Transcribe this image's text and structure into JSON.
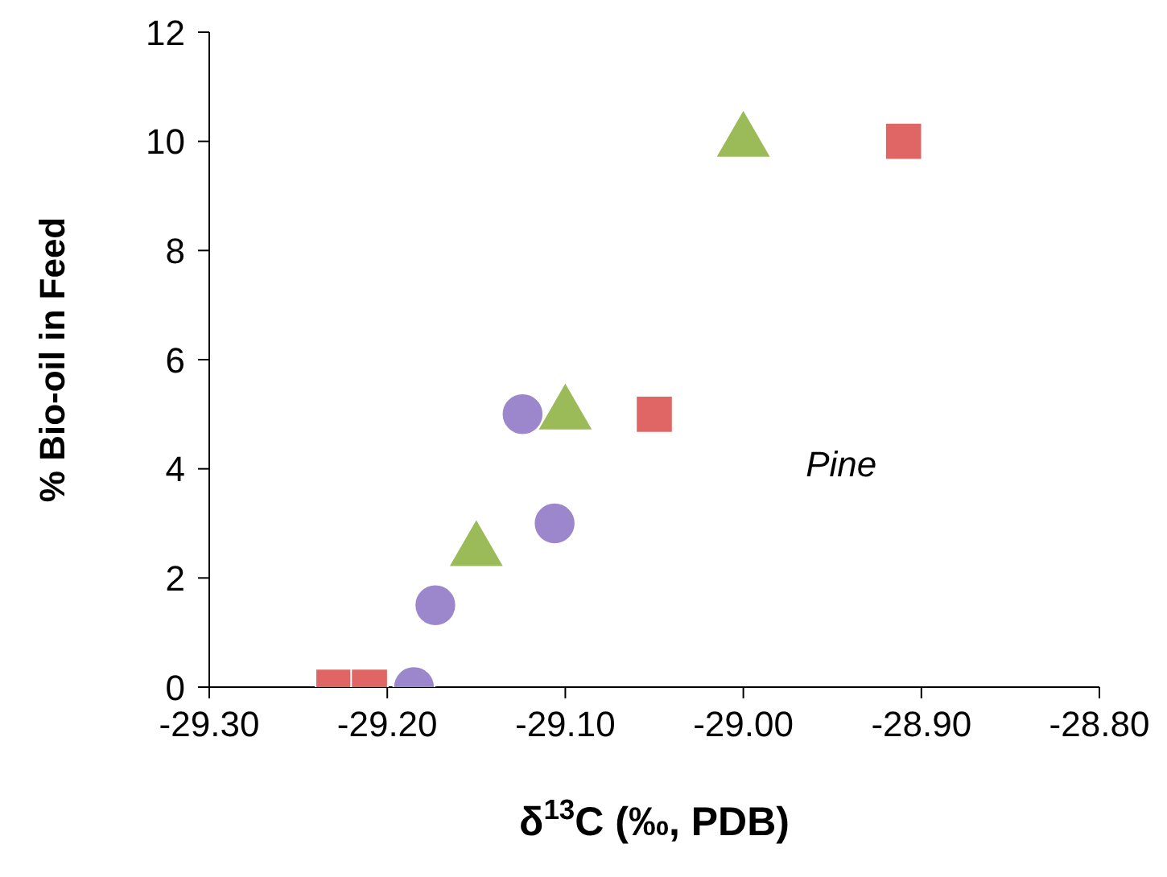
{
  "chart_data": {
    "type": "scatter",
    "xlabel": "δ$^{13}$C (‰, PDB)",
    "ylabel": "% Bio-oil in Feed",
    "annotations": [
      "Pine"
    ],
    "series": [
      {
        "color": "#e06666",
        "marker": "square",
        "x": [
          -29.23,
          -29.21,
          -29.05,
          -28.91
        ],
        "values": [
          0,
          0,
          5,
          10
        ]
      },
      {
        "color": "#9bbb59",
        "marker": "triangle",
        "x": [
          -29.15,
          -29.1,
          -29.0
        ],
        "values": [
          2.5,
          5,
          10
        ]
      },
      {
        "color": "#9d87cc",
        "marker": "circle",
        "x": [
          -29.185,
          -29.173,
          -29.124,
          -29.106
        ],
        "values": [
          0,
          1.5,
          5,
          3
        ]
      }
    ],
    "xlim": [
      -29.3,
      -28.8
    ],
    "xticks": [
      {
        "value": -29.3,
        "label": "-29.30"
      },
      {
        "value": -29.2,
        "label": "-29.20"
      },
      {
        "value": -29.1,
        "label": "-29.10"
      },
      {
        "value": -29.0,
        "label": "-29.00"
      },
      {
        "value": -28.9,
        "label": "-28.90"
      },
      {
        "value": -28.8,
        "label": "-28.80"
      }
    ],
    "ylim": [
      0,
      12
    ],
    "yticks": [
      0,
      2,
      4,
      6,
      8,
      10,
      12
    ],
    "grid": false,
    "legend": false
  }
}
